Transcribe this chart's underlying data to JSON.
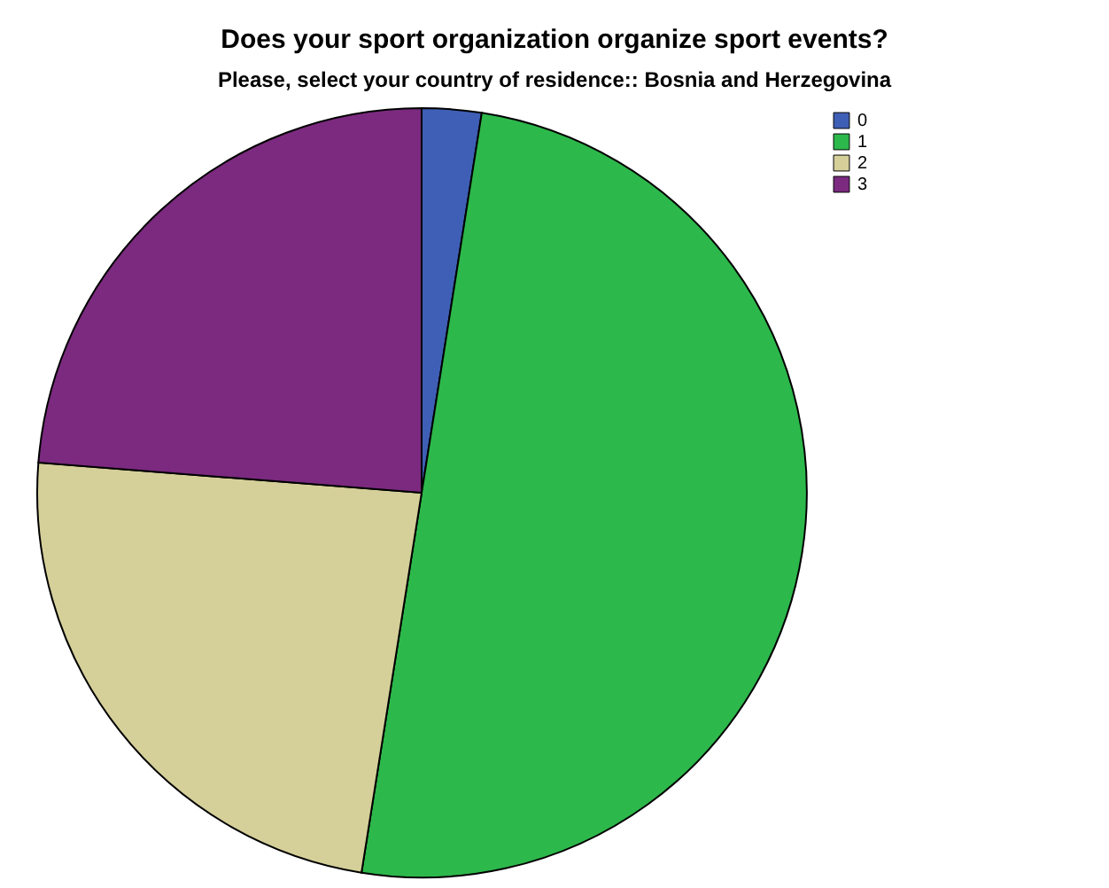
{
  "chart_data": {
    "type": "pie",
    "title": "Does your sport organization organize sport events?",
    "subtitle": "Please, select your country of residence:: Bosnia and Herzegovina",
    "categories": [
      "0",
      "1",
      "2",
      "3"
    ],
    "values": [
      2.5,
      50,
      23.75,
      23.75
    ],
    "colors": [
      "#3e5fb5",
      "#2db84b",
      "#d5cf99",
      "#7b2a7f"
    ],
    "legend": "top right"
  }
}
